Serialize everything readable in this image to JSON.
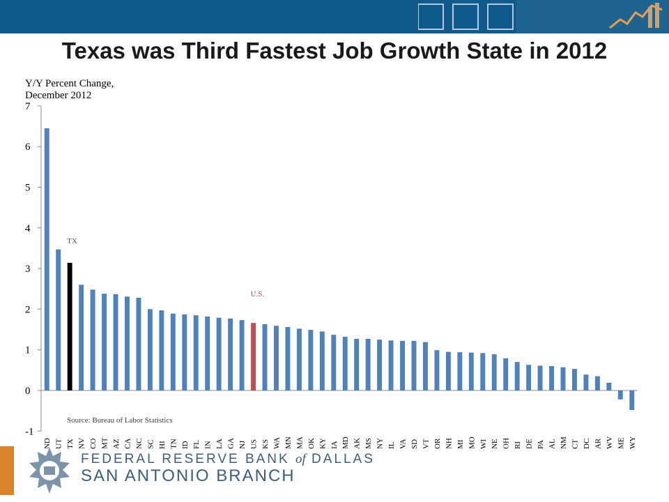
{
  "slide": {
    "title": "Texas was Third Fastest Job Growth State in 2012"
  },
  "branding": {
    "line1_a": "FEDERAL RESERVE BANK ",
    "line1_of": "of",
    "line1_b": " DALLAS",
    "line2": "SAN ANTONIO BRANCH",
    "band_color": "#0e5a8a",
    "accent_color": "#d9832b"
  },
  "chart_data": {
    "type": "bar",
    "ylabel": "Y/Y Percent Change, December 2012",
    "ylim": [
      -1,
      7
    ],
    "yticks": [
      -1,
      0,
      1,
      2,
      3,
      4,
      5,
      6,
      7
    ],
    "grid": false,
    "source": "Source:  Bureau of Labor Statistics",
    "annotations": [
      {
        "text": "TX",
        "category": "TX",
        "color": "#595959"
      },
      {
        "text": "U.S.",
        "category": "US",
        "color": "#c0504d"
      }
    ],
    "colors": {
      "default": "#4f81bd",
      "TX": "#000000",
      "US": "#c0504d"
    },
    "categories": [
      "ND",
      "UT",
      "TX",
      "NV",
      "CO",
      "MT",
      "AZ",
      "CA",
      "NC",
      "SC",
      "HI",
      "TN",
      "ID",
      "FL",
      "IN",
      "LA",
      "GA",
      "NJ",
      "US",
      "KS",
      "WA",
      "MN",
      "MA",
      "OK",
      "KY",
      "IA",
      "MD",
      "AK",
      "MS",
      "NY",
      "IL",
      "VA",
      "SD",
      "VT",
      "OR",
      "NH",
      "MI",
      "MO",
      "WI",
      "NE",
      "OH",
      "RI",
      "DE",
      "PA",
      "AL",
      "NM",
      "CT",
      "DC",
      "AR",
      "WV",
      "ME",
      "WY"
    ],
    "values": [
      6.45,
      3.47,
      3.14,
      2.6,
      2.48,
      2.38,
      2.37,
      2.31,
      2.28,
      2.0,
      1.97,
      1.89,
      1.87,
      1.85,
      1.82,
      1.79,
      1.77,
      1.73,
      1.66,
      1.63,
      1.59,
      1.56,
      1.52,
      1.49,
      1.45,
      1.37,
      1.32,
      1.27,
      1.27,
      1.25,
      1.23,
      1.22,
      1.22,
      1.19,
      0.99,
      0.95,
      0.94,
      0.93,
      0.92,
      0.89,
      0.79,
      0.7,
      0.63,
      0.61,
      0.6,
      0.57,
      0.53,
      0.39,
      0.35,
      0.19,
      -0.22,
      -0.48
    ]
  }
}
